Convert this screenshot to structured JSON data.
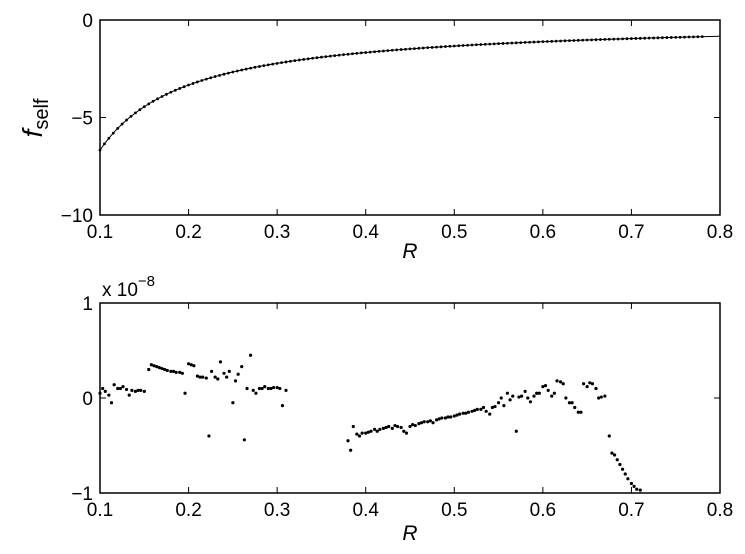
{
  "chart_data": [
    {
      "type": "line",
      "title": "",
      "xlabel": "R",
      "ylabel": {
        "base": "f",
        "subscript": "self"
      },
      "xlim": [
        0.1,
        0.8
      ],
      "ylim": [
        -10,
        0
      ],
      "xticks": [
        "0.1",
        "0.2",
        "0.3",
        "0.4",
        "0.5",
        "0.6",
        "0.7",
        "0.8"
      ],
      "yticks": [
        "−10",
        "−5",
        "0"
      ],
      "grid": false,
      "legend": "none",
      "color": "#000000",
      "series": [
        {
          "style": "solid-line",
          "formula": "f = -0.667 / R",
          "x_range": [
            0.1,
            0.8
          ]
        },
        {
          "style": "dots",
          "formula": "f = -0.667 / R",
          "x_range": [
            0.1,
            0.78
          ],
          "step": 0.005
        }
      ]
    },
    {
      "type": "scatter",
      "title": "",
      "xlabel": "R",
      "ylabel": "",
      "multiplier": {
        "base": "x 10",
        "exponent": "−8"
      },
      "xlim": [
        0.1,
        0.8
      ],
      "ylim": [
        -1,
        1
      ],
      "xticks": [
        "0.1",
        "0.2",
        "0.3",
        "0.4",
        "0.5",
        "0.6",
        "0.7",
        "0.8"
      ],
      "yticks": [
        "−1",
        "0",
        "1"
      ],
      "grid": false,
      "legend": "none",
      "color": "#000000",
      "points": [
        [
          0.1,
          0.05
        ],
        [
          0.103,
          0.1
        ],
        [
          0.106,
          0.07
        ],
        [
          0.11,
          0.03
        ],
        [
          0.113,
          -0.05
        ],
        [
          0.116,
          0.14
        ],
        [
          0.12,
          0.1
        ],
        [
          0.123,
          0.1
        ],
        [
          0.126,
          0.12
        ],
        [
          0.13,
          0.09
        ],
        [
          0.133,
          0.03
        ],
        [
          0.136,
          0.08
        ],
        [
          0.14,
          0.07
        ],
        [
          0.143,
          0.08
        ],
        [
          0.146,
          0.08
        ],
        [
          0.15,
          0.07
        ],
        [
          0.155,
          0.3
        ],
        [
          0.158,
          0.35
        ],
        [
          0.161,
          0.34
        ],
        [
          0.164,
          0.33
        ],
        [
          0.167,
          0.32
        ],
        [
          0.17,
          0.31
        ],
        [
          0.173,
          0.3
        ],
        [
          0.176,
          0.29
        ],
        [
          0.18,
          0.28
        ],
        [
          0.183,
          0.28
        ],
        [
          0.186,
          0.27
        ],
        [
          0.19,
          0.27
        ],
        [
          0.193,
          0.26
        ],
        [
          0.196,
          0.05
        ],
        [
          0.2,
          0.36
        ],
        [
          0.203,
          0.35
        ],
        [
          0.206,
          0.34
        ],
        [
          0.21,
          0.23
        ],
        [
          0.213,
          0.22
        ],
        [
          0.216,
          0.22
        ],
        [
          0.22,
          0.21
        ],
        [
          0.223,
          -0.4
        ],
        [
          0.226,
          0.28
        ],
        [
          0.23,
          0.22
        ],
        [
          0.233,
          0.2
        ],
        [
          0.236,
          0.38
        ],
        [
          0.24,
          0.26
        ],
        [
          0.243,
          0.22
        ],
        [
          0.246,
          0.28
        ],
        [
          0.25,
          -0.05
        ],
        [
          0.253,
          0.18
        ],
        [
          0.256,
          0.25
        ],
        [
          0.26,
          0.33
        ],
        [
          0.263,
          -0.44
        ],
        [
          0.266,
          0.1
        ],
        [
          0.27,
          0.45
        ],
        [
          0.273,
          0.08
        ],
        [
          0.276,
          0.05
        ],
        [
          0.28,
          0.1
        ],
        [
          0.283,
          0.1
        ],
        [
          0.286,
          0.12
        ],
        [
          0.29,
          0.1
        ],
        [
          0.293,
          0.1
        ],
        [
          0.296,
          0.11
        ],
        [
          0.3,
          0.11
        ],
        [
          0.303,
          0.1
        ],
        [
          0.306,
          -0.08
        ],
        [
          0.31,
          0.08
        ],
        [
          0.38,
          -0.45
        ],
        [
          0.383,
          -0.55
        ],
        [
          0.386,
          -0.3
        ],
        [
          0.39,
          -0.38
        ],
        [
          0.393,
          -0.4
        ],
        [
          0.396,
          -0.37
        ],
        [
          0.4,
          -0.37
        ],
        [
          0.403,
          -0.36
        ],
        [
          0.406,
          -0.35
        ],
        [
          0.41,
          -0.33
        ],
        [
          0.413,
          -0.35
        ],
        [
          0.416,
          -0.33
        ],
        [
          0.42,
          -0.32
        ],
        [
          0.423,
          -0.31
        ],
        [
          0.426,
          -0.3
        ],
        [
          0.43,
          -0.32
        ],
        [
          0.433,
          -0.29
        ],
        [
          0.436,
          -0.3
        ],
        [
          0.44,
          -0.31
        ],
        [
          0.443,
          -0.35
        ],
        [
          0.446,
          -0.37
        ],
        [
          0.45,
          -0.3
        ],
        [
          0.453,
          -0.28
        ],
        [
          0.456,
          -0.29
        ],
        [
          0.46,
          -0.27
        ],
        [
          0.463,
          -0.26
        ],
        [
          0.466,
          -0.25
        ],
        [
          0.47,
          -0.25
        ],
        [
          0.473,
          -0.24
        ],
        [
          0.476,
          -0.26
        ],
        [
          0.48,
          -0.23
        ],
        [
          0.483,
          -0.22
        ],
        [
          0.486,
          -0.21
        ],
        [
          0.49,
          -0.21
        ],
        [
          0.493,
          -0.2
        ],
        [
          0.496,
          -0.2
        ],
        [
          0.5,
          -0.19
        ],
        [
          0.503,
          -0.18
        ],
        [
          0.506,
          -0.17
        ],
        [
          0.51,
          -0.16
        ],
        [
          0.513,
          -0.16
        ],
        [
          0.516,
          -0.15
        ],
        [
          0.52,
          -0.14
        ],
        [
          0.523,
          -0.13
        ],
        [
          0.526,
          -0.12
        ],
        [
          0.53,
          -0.12
        ],
        [
          0.533,
          -0.1
        ],
        [
          0.536,
          -0.14
        ],
        [
          0.54,
          -0.17
        ],
        [
          0.543,
          -0.1
        ],
        [
          0.546,
          -0.09
        ],
        [
          0.55,
          -0.05
        ],
        [
          0.553,
          0.0
        ],
        [
          0.556,
          -0.08
        ],
        [
          0.56,
          0.05
        ],
        [
          0.563,
          -0.02
        ],
        [
          0.566,
          0.02
        ],
        [
          0.57,
          -0.35
        ],
        [
          0.573,
          0.01
        ],
        [
          0.576,
          0.02
        ],
        [
          0.58,
          0.07
        ],
        [
          0.583,
          0.0
        ],
        [
          0.586,
          -0.04
        ],
        [
          0.59,
          0.02
        ],
        [
          0.593,
          0.05
        ],
        [
          0.596,
          0.05
        ],
        [
          0.6,
          0.12
        ],
        [
          0.603,
          0.13
        ],
        [
          0.606,
          0.08
        ],
        [
          0.61,
          0.02
        ],
        [
          0.613,
          0.05
        ],
        [
          0.616,
          0.18
        ],
        [
          0.62,
          0.17
        ],
        [
          0.623,
          0.15
        ],
        [
          0.626,
          0.0
        ],
        [
          0.63,
          -0.05
        ],
        [
          0.633,
          -0.05
        ],
        [
          0.636,
          -0.1
        ],
        [
          0.64,
          -0.15
        ],
        [
          0.643,
          -0.15
        ],
        [
          0.646,
          0.15
        ],
        [
          0.65,
          0.12
        ],
        [
          0.653,
          0.16
        ],
        [
          0.656,
          0.15
        ],
        [
          0.66,
          0.1
        ],
        [
          0.663,
          0.0
        ],
        [
          0.666,
          0.01
        ],
        [
          0.67,
          0.02
        ],
        [
          0.675,
          -0.4
        ],
        [
          0.678,
          -0.58
        ],
        [
          0.681,
          -0.6
        ],
        [
          0.684,
          -0.65
        ],
        [
          0.687,
          -0.7
        ],
        [
          0.69,
          -0.75
        ],
        [
          0.693,
          -0.8
        ],
        [
          0.696,
          -0.85
        ],
        [
          0.7,
          -0.9
        ],
        [
          0.703,
          -0.93
        ],
        [
          0.706,
          -0.96
        ],
        [
          0.71,
          -0.97
        ]
      ]
    }
  ]
}
